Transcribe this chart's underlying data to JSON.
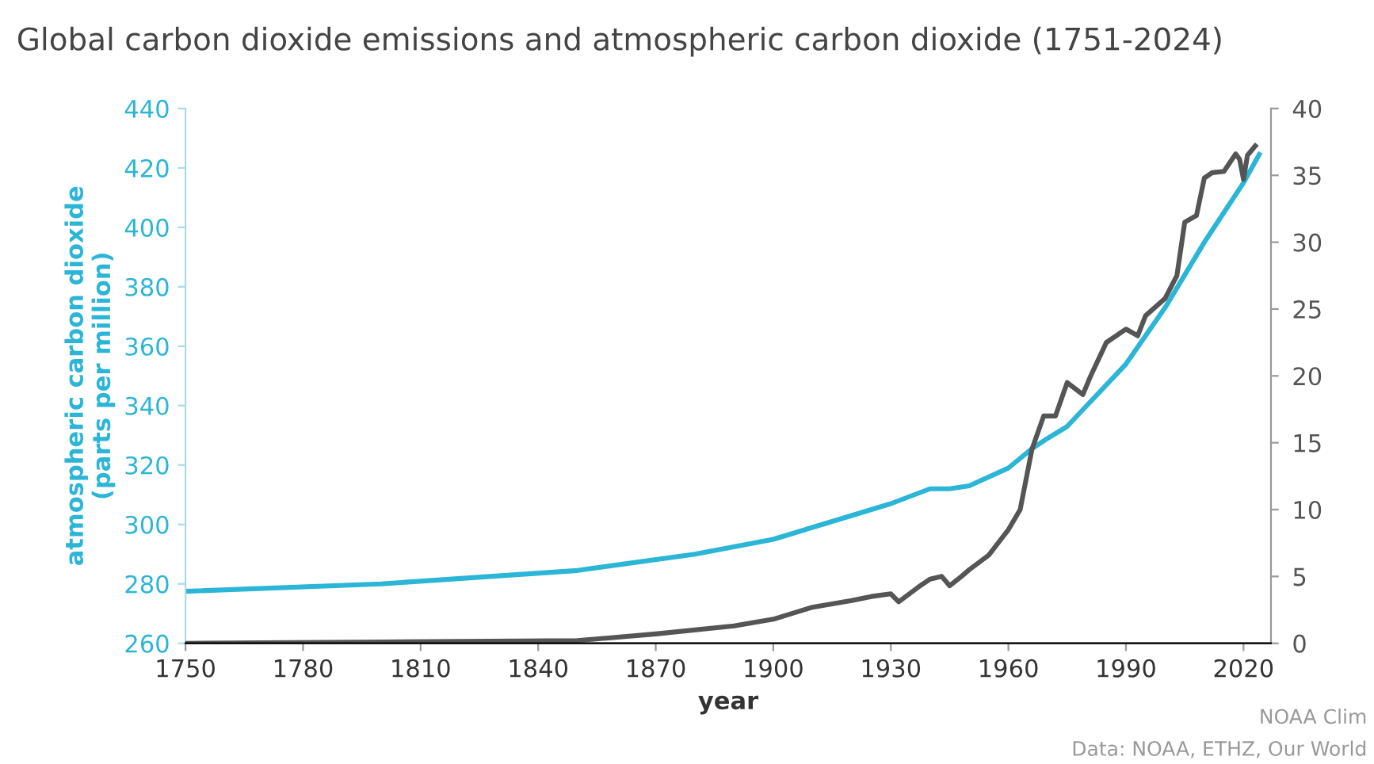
{
  "chart_data": {
    "type": "line",
    "title": "Global carbon dioxide emissions and atmospheric carbon dioxide (1751-2024)",
    "xlabel": "year",
    "ylabel": "atmospheric carbon dioxide\n(parts per million)",
    "xlim": [
      1750,
      2027
    ],
    "xticks": [
      1750,
      1780,
      1810,
      1840,
      1870,
      1900,
      1930,
      1960,
      1990,
      2020
    ],
    "ylim": [
      260,
      440
    ],
    "yticks": [
      260,
      280,
      300,
      320,
      340,
      360,
      380,
      400,
      420,
      440
    ],
    "y2lim": [
      0,
      40
    ],
    "y2ticks": [
      0,
      5,
      10,
      15,
      20,
      25,
      30,
      35,
      40
    ],
    "grid": false,
    "legend": false,
    "series": [
      {
        "color": "#2bb5d6",
        "x": [
          1750,
          1800,
          1850,
          1880,
          1900,
          1915,
          1930,
          1940,
          1945,
          1950,
          1960,
          1966,
          1970,
          1975,
          1980,
          1990,
          2000,
          2010,
          2020,
          2024
        ],
        "values": [
          277.5,
          280,
          284.5,
          290,
          295,
          301,
          307,
          312,
          312,
          313,
          319,
          325.5,
          329,
          333,
          340,
          354,
          373,
          395,
          415,
          424.5
        ]
      },
      {
        "color": "#555555",
        "axis": "y2",
        "x": [
          1750,
          1800,
          1850,
          1870,
          1890,
          1900,
          1910,
          1920,
          1925,
          1930,
          1932,
          1937,
          1940,
          1943,
          1945,
          1948,
          1950,
          1955,
          1960,
          1963,
          1966,
          1969,
          1972,
          1975,
          1979,
          1981,
          1985,
          1990,
          1993,
          1995,
          2000,
          2003,
          2005,
          2008,
          2010,
          2012,
          2015,
          2018,
          2019,
          2020,
          2021,
          2023
        ],
        "values": [
          0,
          0.1,
          0.2,
          0.7,
          1.3,
          1.8,
          2.7,
          3.2,
          3.5,
          3.7,
          3.1,
          4.2,
          4.8,
          5,
          4.3,
          5,
          5.5,
          6.6,
          8.5,
          10,
          14.5,
          17,
          17,
          19.5,
          18.6,
          20,
          22.5,
          23.5,
          23,
          24.5,
          25.8,
          27.5,
          31.5,
          32,
          34.8,
          35.2,
          35.3,
          36.6,
          36.2,
          34.7,
          36.5,
          37.2
        ]
      }
    ],
    "annotations": [
      "NOAA Clim",
      "Data: NOAA, ETHZ, Our World"
    ]
  }
}
